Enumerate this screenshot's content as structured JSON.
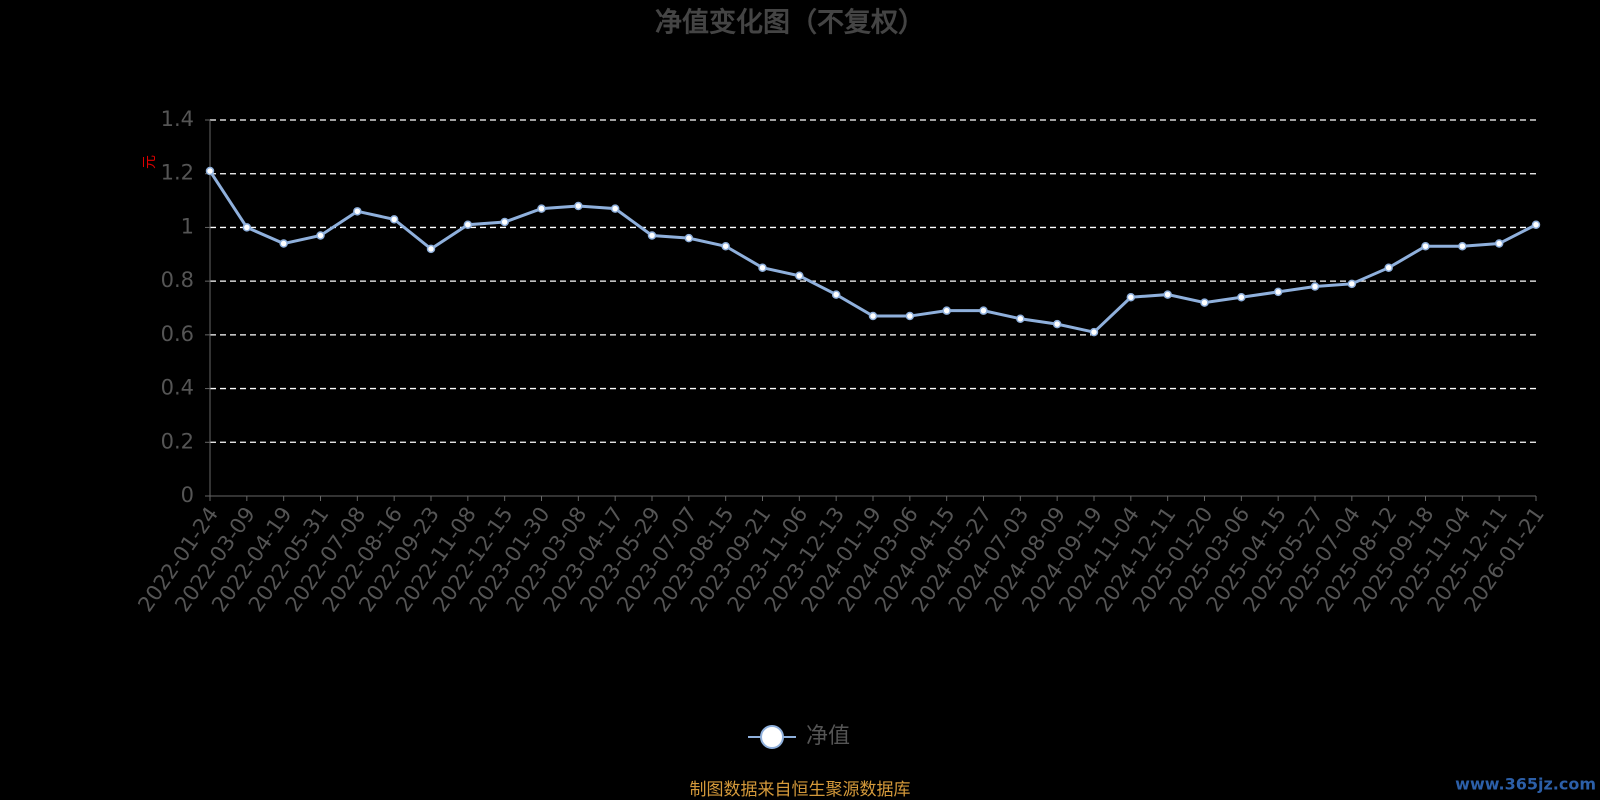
{
  "chart_data": {
    "type": "line",
    "title": "净值变化图（不复权）",
    "y_label": "元",
    "categories": [
      "2022-01-24",
      "2022-03-09",
      "2022-04-19",
      "2022-05-31",
      "2022-07-08",
      "2022-08-16",
      "2022-09-23",
      "2022-11-08",
      "2022-12-15",
      "2023-01-30",
      "2023-03-08",
      "2023-04-17",
      "2023-05-29",
      "2023-07-07",
      "2023-08-15",
      "2023-09-21",
      "2023-11-06",
      "2023-12-13",
      "2024-01-19",
      "2024-03-06",
      "2024-04-15",
      "2024-05-27",
      "2024-07-03",
      "2024-08-09",
      "2024-09-19",
      "2024-11-04",
      "2024-12-11",
      "2025-01-20",
      "2025-03-06",
      "2025-04-15",
      "2025-05-27",
      "2025-07-04",
      "2025-08-12",
      "2025-09-18",
      "2025-11-04",
      "2025-12-11",
      "2026-01-21"
    ],
    "series": [
      {
        "name": "净值",
        "color": "#8fb0dc",
        "values": [
          1.21,
          1.0,
          0.94,
          0.97,
          1.06,
          1.03,
          0.92,
          1.01,
          1.02,
          1.07,
          1.08,
          1.07,
          0.97,
          0.96,
          0.93,
          0.85,
          0.82,
          0.75,
          0.67,
          0.67,
          0.69,
          0.69,
          0.66,
          0.64,
          0.61,
          0.74,
          0.75,
          0.72,
          0.74,
          0.76,
          0.78,
          0.79,
          0.85,
          0.93,
          0.93,
          0.94,
          1.01
        ]
      }
    ],
    "ylim": [
      0,
      1.4
    ],
    "yticks": [
      0,
      0.2,
      0.4,
      0.6,
      0.8,
      1,
      1.2,
      1.4
    ],
    "grid": true,
    "source": "制图数据来自恒生聚源数据库",
    "watermark": "www.365jz.com"
  }
}
